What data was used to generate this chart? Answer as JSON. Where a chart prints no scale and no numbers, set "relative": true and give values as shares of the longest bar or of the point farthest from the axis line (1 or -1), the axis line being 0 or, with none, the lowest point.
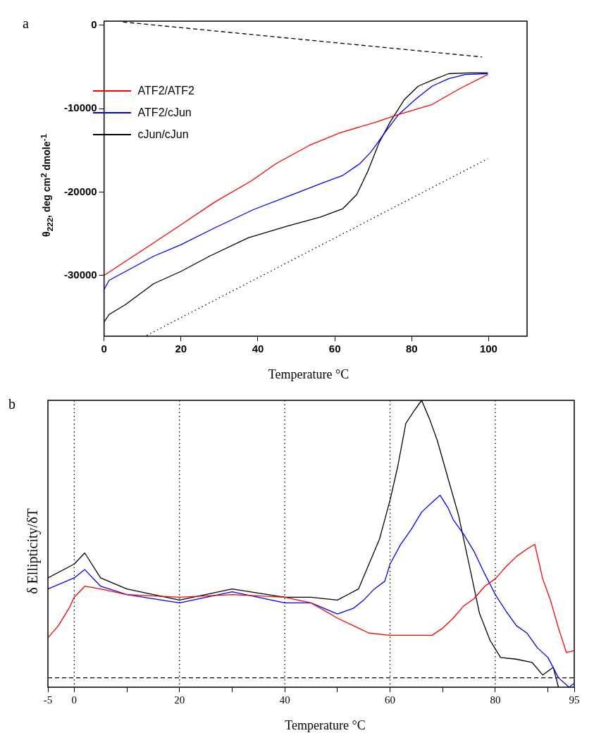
{
  "chart_data": [
    {
      "type": "line",
      "annotations": [
        "a"
      ],
      "xlabel": "Temperature °C",
      "ylabel": "θ$_{222}$, deg cm$^{2}$ dmole$^{-1}$",
      "xlim": [
        0,
        110
      ],
      "xticks": [
        0,
        20,
        40,
        60,
        80,
        100
      ],
      "ylim": [
        -37300,
        500
      ],
      "yticks": [
        0,
        -10000,
        -20000,
        -30000
      ],
      "legend": "top left",
      "series": [
        {
          "name": "ATF2/ATF2",
          "color": "#ff0000",
          "x": [
            0,
            12.9,
            20.1,
            28.8,
            38.2,
            44.7,
            53.4,
            61.4,
            70.8,
            76.6,
            85.3,
            92.5,
            99.8
          ],
          "values": [
            -30000,
            -26100,
            -23900,
            -21200,
            -18700,
            -16600,
            -14400,
            -12900,
            -11600,
            -10700,
            -9500,
            -7600,
            -5900
          ]
        },
        {
          "name": "ATF2/cJun",
          "color": "#0000ff",
          "x": [
            0,
            1.3,
            12.9,
            20.1,
            28.8,
            38.9,
            49.1,
            56.3,
            62.1,
            66.5,
            69.4,
            73,
            76.6,
            80.9,
            85.3,
            89.6,
            94,
            99.8
          ],
          "values": [
            -31700,
            -30600,
            -27700,
            -26300,
            -24300,
            -22100,
            -20300,
            -19000,
            -18000,
            -16600,
            -15200,
            -12900,
            -10700,
            -8900,
            -7300,
            -6400,
            -5900,
            -5800
          ]
        },
        {
          "name": "cJun/cJun",
          "color": "#000000",
          "x": [
            0,
            1.3,
            5.6,
            12.9,
            20.1,
            27.4,
            37.5,
            47.6,
            56.3,
            62.1,
            65.7,
            68.6,
            71.5,
            74.4,
            78.1,
            81.7,
            85.3,
            89.6,
            95.4,
            99.8
          ],
          "values": [
            -35600,
            -34700,
            -33500,
            -31000,
            -29500,
            -27700,
            -25500,
            -24100,
            -23000,
            -22000,
            -20300,
            -17500,
            -14100,
            -11600,
            -8900,
            -7300,
            -6600,
            -5800,
            -5700,
            -5700
          ]
        },
        {
          "color": "#000000",
          "line_style": "dashed",
          "x": [
            4.9,
            98.3
          ],
          "values": [
            400,
            -3800
          ]
        },
        {
          "color": "#000000",
          "line_style": "dotted",
          "x": [
            11.1,
            99.8
          ],
          "values": [
            -37200,
            -16000
          ]
        }
      ]
    },
    {
      "type": "line",
      "annotations": [
        "b"
      ],
      "xlabel": "Temperature °C",
      "ylabel": "δ Ellipticity/δT",
      "relative": true,
      "xlim": [
        -5,
        95
      ],
      "xticks": [
        -5,
        0,
        {
          "value": 10,
          "label": null
        },
        20,
        {
          "value": 30,
          "label": null
        },
        40,
        {
          "value": 50,
          "label": null
        },
        60,
        {
          "value": 70,
          "label": null
        },
        80,
        {
          "value": 90,
          "label": null
        },
        95
      ],
      "ref_lines": [
        {
          "axis": "x",
          "value": 0,
          "color": "#000000",
          "line_style": "dotted"
        },
        {
          "axis": "x",
          "value": 20,
          "color": "#000000",
          "line_style": "dotted"
        },
        {
          "axis": "x",
          "value": 40,
          "color": "#000000",
          "line_style": "dotted"
        },
        {
          "axis": "x",
          "value": 60,
          "color": "#000000",
          "line_style": "dotted"
        },
        {
          "axis": "x",
          "value": 80,
          "color": "#000000",
          "line_style": "dotted"
        },
        {
          "axis": "y",
          "value": 0,
          "color": "#000000",
          "line_style": "dashed"
        }
      ],
      "series": [
        {
          "color": "#ff0000",
          "x": [
            -5,
            -3,
            -1,
            0,
            2,
            5,
            10,
            20,
            30,
            40,
            45,
            50,
            53,
            56,
            60,
            64,
            68,
            70,
            72,
            74,
            76,
            78,
            80,
            82,
            84,
            86,
            87.5,
            89,
            90.5,
            92,
            93.5,
            95
          ],
          "values": [
            0.144,
            0.188,
            0.25,
            0.29,
            0.33,
            0.32,
            0.3,
            0.29,
            0.3,
            0.29,
            0.27,
            0.215,
            0.188,
            0.161,
            0.153,
            0.153,
            0.153,
            0.179,
            0.215,
            0.259,
            0.286,
            0.33,
            0.357,
            0.4,
            0.437,
            0.464,
            0.481,
            0.357,
            0.278,
            0.179,
            0.091,
            0.098
          ]
        },
        {
          "color": "#0000ff",
          "x": [
            -5,
            0,
            2,
            5,
            10,
            20,
            30,
            40,
            45,
            50,
            53,
            55,
            57,
            59,
            60,
            62,
            64,
            66,
            68,
            69.5,
            71,
            72,
            74,
            76,
            78,
            80,
            82,
            84,
            86,
            88,
            90,
            92,
            94,
            95
          ],
          "values": [
            0.32,
            0.36,
            0.39,
            0.33,
            0.3,
            0.27,
            0.31,
            0.27,
            0.27,
            0.23,
            0.25,
            0.28,
            0.32,
            0.348,
            0.41,
            0.48,
            0.534,
            0.597,
            0.632,
            0.658,
            0.613,
            0.57,
            0.517,
            0.454,
            0.374,
            0.3,
            0.241,
            0.188,
            0.161,
            0.108,
            0.073,
            0,
            -0.034,
            -0.02
          ]
        },
        {
          "color": "#000000",
          "x": [
            -5,
            0,
            2,
            5,
            10,
            20,
            30,
            40,
            45,
            50,
            52,
            54,
            56,
            58,
            60,
            61.5,
            63,
            64.5,
            66,
            67.5,
            69,
            71,
            73,
            75,
            77,
            79,
            81,
            84,
            87,
            89,
            91,
            92
          ],
          "values": [
            0.36,
            0.41,
            0.45,
            0.36,
            0.32,
            0.28,
            0.32,
            0.29,
            0.29,
            0.28,
            0.3,
            0.32,
            0.41,
            0.5,
            0.64,
            0.765,
            0.917,
            0.96,
            1,
            0.933,
            0.854,
            0.72,
            0.587,
            0.41,
            0.232,
            0.135,
            0.073,
            0.067,
            0.055,
            0.01,
            0.038,
            -0.034
          ]
        }
      ]
    }
  ]
}
